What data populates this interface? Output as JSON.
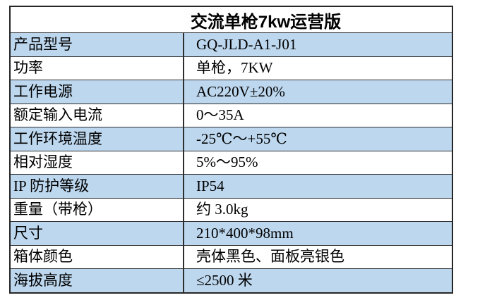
{
  "table": {
    "title": "交流单枪7kw运营版",
    "colors": {
      "row_alt_background": "#BDD7EE",
      "row_base_background": "#FFFFFF",
      "border": "#2E2E2E",
      "text": "#000000"
    },
    "rows": [
      {
        "label": "产品型号",
        "value": "GQ-JLD-A1-J01"
      },
      {
        "label": "功率",
        "value": "单枪，7KW"
      },
      {
        "label": "工作电源",
        "value": "AC220V±20%"
      },
      {
        "label": "额定输入电流",
        "value": "0～35A"
      },
      {
        "label": "工作环境温度",
        "value": "-25℃～+55℃"
      },
      {
        "label": "相对湿度",
        "value": "5%～95%"
      },
      {
        "label": "IP 防护等级",
        "value": "IP54"
      },
      {
        "label": "重量（带枪）",
        "value": "约 3.0kg"
      },
      {
        "label": "尺寸",
        "value": "210*400*98mm"
      },
      {
        "label": "箱体颜色",
        "value": "壳体黑色、面板亮银色"
      },
      {
        "label": "海拔高度",
        "value": "≤2500 米"
      }
    ]
  }
}
